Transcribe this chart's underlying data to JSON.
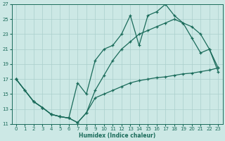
{
  "xlabel": "Humidex (Indice chaleur)",
  "xlim": [
    -0.5,
    23.5
  ],
  "ylim": [
    11,
    27
  ],
  "xticks": [
    0,
    1,
    2,
    3,
    4,
    5,
    6,
    7,
    8,
    9,
    10,
    11,
    12,
    13,
    14,
    15,
    16,
    17,
    18,
    19,
    20,
    21,
    22,
    23
  ],
  "yticks": [
    11,
    13,
    15,
    17,
    19,
    21,
    23,
    25,
    27
  ],
  "bg_color": "#cce8e5",
  "grid_color": "#aacfcc",
  "line_color": "#1a6b5a",
  "line1_x": [
    0,
    1,
    2,
    3,
    4,
    5,
    6,
    7,
    8,
    9,
    10,
    11,
    12,
    13,
    14,
    15,
    16,
    17,
    18,
    19,
    20,
    21,
    22,
    23
  ],
  "line1_y": [
    17,
    15.5,
    14,
    13.2,
    12.3,
    12.0,
    11.8,
    11.2,
    12.5,
    14.5,
    15,
    15.5,
    16,
    16.5,
    16.8,
    17.0,
    17.2,
    17.3,
    17.5,
    17.7,
    17.8,
    18.0,
    18.2,
    18.5
  ],
  "line2_x": [
    0,
    1,
    2,
    3,
    4,
    5,
    6,
    7,
    8,
    9,
    10,
    11,
    12,
    13,
    14,
    15,
    16,
    17,
    18,
    19,
    20,
    21,
    22,
    23
  ],
  "line2_y": [
    17,
    15.5,
    14,
    13.2,
    12.3,
    12.0,
    11.8,
    16.5,
    15.0,
    19.5,
    21.0,
    21.5,
    23.0,
    25.5,
    21.5,
    25.5,
    26.0,
    27.0,
    25.5,
    24.5,
    22.5,
    20.5,
    21.0,
    18.0
  ],
  "line3_x": [
    0,
    2,
    3,
    4,
    5,
    6,
    7,
    8,
    9,
    10,
    11,
    12,
    13,
    14,
    15,
    16,
    17,
    18,
    19,
    20,
    21,
    22,
    23
  ],
  "line3_y": [
    17,
    14,
    13.2,
    12.3,
    12.0,
    11.8,
    11.2,
    12.5,
    15.5,
    17.5,
    19.5,
    21.0,
    22.0,
    23.0,
    23.5,
    24.0,
    24.5,
    25.0,
    24.5,
    24.0,
    23.0,
    21.0,
    18.5
  ]
}
